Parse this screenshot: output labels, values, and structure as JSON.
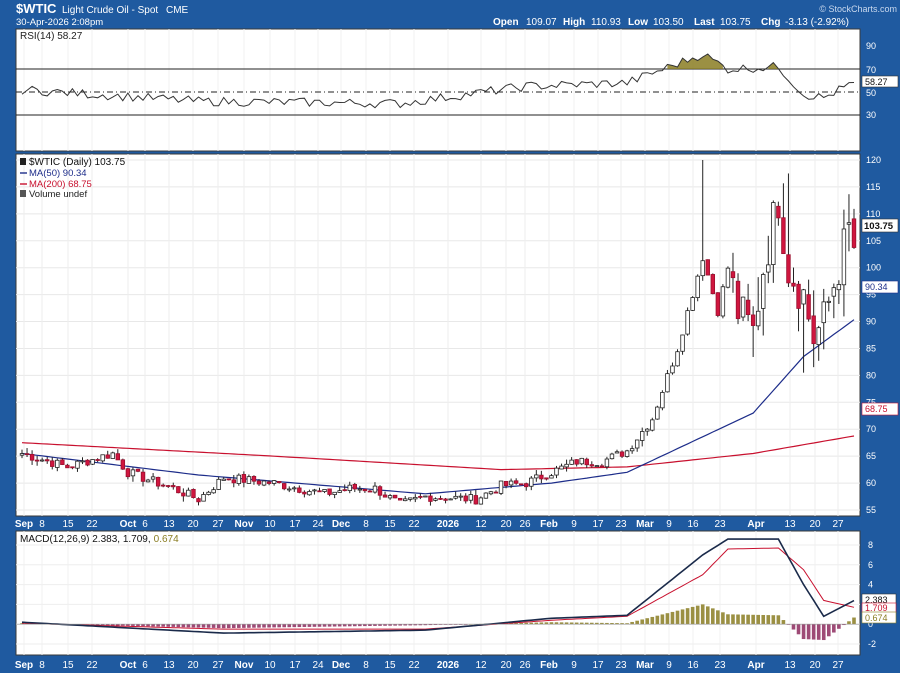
{
  "header": {
    "symbol": "$WTIC",
    "name": "Light Crude Oil - Spot",
    "exchange": "CME",
    "datetime": "30-Apr-2026 2:08pm",
    "watermark": "© StockCharts.com",
    "open_label": "Open",
    "open": "109.07",
    "high_label": "High",
    "high": "110.93",
    "low_label": "Low",
    "low": "103.50",
    "last_label": "Last",
    "last": "103.75",
    "chg_label": "Chg",
    "chg": "-3.13 (-2.92%)"
  },
  "rsi": {
    "legend": "RSI(14) 58.27",
    "value_tag": "58.27",
    "levels": [
      "90",
      "70",
      "50",
      "30"
    ]
  },
  "price": {
    "legend_title": "$WTIC (Daily) 103.75",
    "legend_ma50": "MA(50) 90.34",
    "legend_ma200": "MA(200) 68.75",
    "legend_volume": "Volume undef",
    "last_tag": "103.75",
    "ma50_tag": "90.34",
    "ma200_tag": "68.75",
    "yticks": [
      "120",
      "115",
      "110",
      "105",
      "100",
      "95",
      "90",
      "85",
      "80",
      "75",
      "70",
      "65",
      "60",
      "55"
    ]
  },
  "macd": {
    "legend_prefix": "MACD(12,26,9) 2.383, 1.709,",
    "legend_hist": "0.674",
    "tag_macd": "2.383",
    "tag_signal": "1.709",
    "tag_hist": "0.674",
    "yticks": [
      "8",
      "6",
      "4",
      "2",
      "0",
      "-2"
    ]
  },
  "xaxis": {
    "labels": [
      {
        "t": "Sep",
        "bold": true
      },
      {
        "t": "8"
      },
      {
        "t": "15"
      },
      {
        "t": "22"
      },
      {
        "t": "Oct",
        "bold": true
      },
      {
        "t": "6"
      },
      {
        "t": "13"
      },
      {
        "t": "20"
      },
      {
        "t": "27"
      },
      {
        "t": "Nov",
        "bold": true
      },
      {
        "t": "10"
      },
      {
        "t": "17"
      },
      {
        "t": "24"
      },
      {
        "t": "Dec",
        "bold": true
      },
      {
        "t": "8"
      },
      {
        "t": "15"
      },
      {
        "t": "22"
      },
      {
        "t": "2026",
        "bold": true
      },
      {
        "t": "12"
      },
      {
        "t": "20"
      },
      {
        "t": "26"
      },
      {
        "t": "Feb",
        "bold": true
      },
      {
        "t": "9"
      },
      {
        "t": "17"
      },
      {
        "t": "23"
      },
      {
        "t": "Mar",
        "bold": true
      },
      {
        "t": "9"
      },
      {
        "t": "16"
      },
      {
        "t": "23"
      },
      {
        "t": "Apr",
        "bold": true
      },
      {
        "t": "13"
      },
      {
        "t": "20"
      },
      {
        "t": "27"
      }
    ]
  },
  "chart_data": {
    "type": "candlestick",
    "title": "$WTIC (Daily)",
    "period": "Sep 2025 – Apr 2026",
    "ylim": [
      55,
      120
    ],
    "ohlc_anchors": [
      {
        "x": "Sep 2",
        "close": 65.5
      },
      {
        "x": "Sep 15",
        "close": 63.0
      },
      {
        "x": "Sep 26",
        "close": 65.5
      },
      {
        "x": "Oct 1",
        "close": 62.0
      },
      {
        "x": "Oct 13",
        "close": 59.0
      },
      {
        "x": "Oct 20",
        "close": 57.0
      },
      {
        "x": "Oct 27",
        "close": 61.0
      },
      {
        "x": "Nov 10",
        "close": 60.0
      },
      {
        "x": "Nov 24",
        "close": 58.0
      },
      {
        "x": "Dec 1",
        "close": 59.0
      },
      {
        "x": "Dec 8",
        "close": 59.0
      },
      {
        "x": "Dec 15",
        "close": 56.0
      },
      {
        "x": "Dec 22",
        "close": 57.5
      },
      {
        "x": "2026 Jan 2",
        "close": 57.0
      },
      {
        "x": "Jan 12",
        "close": 59.5
      },
      {
        "x": "Jan 20",
        "close": 60.0
      },
      {
        "x": "Jan 26",
        "close": 62.0
      },
      {
        "x": "Feb 2",
        "close": 64.0
      },
      {
        "x": "Feb 17",
        "close": 64.0
      },
      {
        "x": "Feb 23",
        "close": 66.0
      },
      {
        "x": "Mar 2",
        "close": 72.0
      },
      {
        "x": "Mar 5",
        "close": 85.0
      },
      {
        "x": "Mar 9",
        "close": 102.0
      },
      {
        "x": "Mar 12",
        "close": 92.0
      },
      {
        "x": "Mar 16",
        "close": 100.0
      },
      {
        "x": "Mar 19",
        "close": 92.0
      },
      {
        "x": "Mar 23",
        "close": 88.0
      },
      {
        "x": "Mar 27",
        "close": 100.0
      },
      {
        "x": "Apr 1",
        "close": 113.0
      },
      {
        "x": "Apr 6",
        "close": 100.0
      },
      {
        "x": "Apr 13",
        "close": 95.0
      },
      {
        "x": "Apr 16",
        "close": 87.0
      },
      {
        "x": "Apr 20",
        "close": 90.0
      },
      {
        "x": "Apr 24",
        "close": 97.0
      },
      {
        "x": "Apr 29",
        "close": 106.9
      },
      {
        "x": "Apr 30",
        "open": 109.07,
        "high": 110.93,
        "low": 103.5,
        "close": 103.75
      }
    ],
    "ma50_anchors": [
      {
        "x": "Sep 2",
        "y": 65.5
      },
      {
        "x": "Oct 20",
        "y": 61.5
      },
      {
        "x": "Dec 22",
        "y": 58.0
      },
      {
        "x": "Jan 26",
        "y": 60.0
      },
      {
        "x": "Feb 23",
        "y": 62.0
      },
      {
        "x": "Mar 23",
        "y": 73.0
      },
      {
        "x": "Apr 13",
        "y": 83.5
      },
      {
        "x": "Apr 30",
        "y": 90.34
      }
    ],
    "ma200_anchors": [
      {
        "x": "Sep 2",
        "y": 67.5
      },
      {
        "x": "Nov 10",
        "y": 65.0
      },
      {
        "x": "Jan 12",
        "y": 62.5
      },
      {
        "x": "Feb 23",
        "y": 63.0
      },
      {
        "x": "Mar 23",
        "y": 65.5
      },
      {
        "x": "Apr 30",
        "y": 68.75
      }
    ],
    "rsi_anchors": [
      {
        "x": "Sep 2",
        "y": 52
      },
      {
        "x": "Oct 20",
        "y": 42
      },
      {
        "x": "Dec 15",
        "y": 40
      },
      {
        "x": "Jan 20",
        "y": 55
      },
      {
        "x": "Feb 23",
        "y": 58
      },
      {
        "x": "Mar 9",
        "y": 83
      },
      {
        "x": "Mar 16",
        "y": 70
      },
      {
        "x": "Apr 1",
        "y": 72
      },
      {
        "x": "Apr 13",
        "y": 48
      },
      {
        "x": "Apr 20",
        "y": 45
      },
      {
        "x": "Apr 30",
        "y": 58.27
      }
    ],
    "macd_anchors": [
      {
        "x": "Sep 2",
        "macd": 0.2,
        "signal": 0.1
      },
      {
        "x": "Oct 27",
        "macd": -0.9,
        "signal": -0.5
      },
      {
        "x": "Dec 22",
        "macd": -0.6,
        "signal": -0.5
      },
      {
        "x": "Jan 26",
        "macd": 0.6,
        "signal": 0.4
      },
      {
        "x": "Feb 23",
        "macd": 0.9,
        "signal": 0.8
      },
      {
        "x": "Mar 9",
        "macd": 7.0,
        "signal": 5.0
      },
      {
        "x": "Mar 16",
        "macd": 8.6,
        "signal": 7.6
      },
      {
        "x": "Apr 1",
        "macd": 8.6,
        "signal": 7.7
      },
      {
        "x": "Apr 13",
        "macd": 4.0,
        "signal": 5.5
      },
      {
        "x": "Apr 20",
        "macd": 0.8,
        "signal": 2.4
      },
      {
        "x": "Apr 30",
        "macd": 2.383,
        "signal": 1.709
      }
    ]
  }
}
